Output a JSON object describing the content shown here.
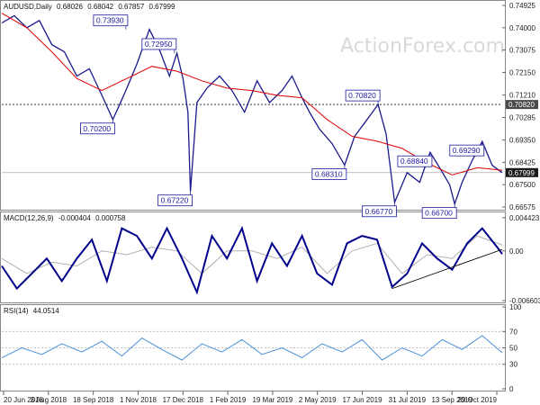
{
  "watermark": "ActionForex.com",
  "chart_data": [
    {
      "type": "line",
      "panel": "price",
      "header": {
        "symbol": "AUDUSD,Daily",
        "open": "0.68026",
        "high": "0.68042",
        "low": "0.67857",
        "close": "0.67999"
      },
      "y_ticks": [
        "0.74925",
        "0.74000",
        "0.73075",
        "0.72150",
        "0.71210",
        "0.70285",
        "0.69350",
        "0.68425",
        "0.67500",
        "0.66575"
      ],
      "ylim": [
        0.665,
        0.75
      ],
      "price_tag": {
        "value": 0.67999,
        "label": "0.67999"
      },
      "horizontal_level": {
        "value": 0.7082,
        "label": "0.70820"
      },
      "callouts": [
        {
          "label": "0.73930",
          "value": 0.7393,
          "t": 0.248
        },
        {
          "label": "0.70200",
          "value": 0.702,
          "t": 0.222
        },
        {
          "label": "0.72950",
          "value": 0.7295,
          "t": 0.345
        },
        {
          "label": "0.67220",
          "value": 0.6722,
          "t": 0.377
        },
        {
          "label": "0.70820",
          "value": 0.7082,
          "t": 0.752
        },
        {
          "label": "0.68310",
          "value": 0.6831,
          "t": 0.685
        },
        {
          "label": "0.68840",
          "value": 0.6884,
          "t": 0.856
        },
        {
          "label": "0.69290",
          "value": 0.6929,
          "t": 0.96
        },
        {
          "label": "0.66770",
          "value": 0.6677,
          "t": 0.785
        },
        {
          "label": "0.66700",
          "value": 0.667,
          "t": 0.905
        }
      ],
      "series": [
        {
          "name": "AUDUSD",
          "x": [
            0,
            0.025,
            0.05,
            0.075,
            0.1,
            0.125,
            0.15,
            0.175,
            0.2,
            0.222,
            0.235,
            0.25,
            0.27,
            0.295,
            0.315,
            0.335,
            0.35,
            0.362,
            0.372,
            0.377,
            0.39,
            0.41,
            0.435,
            0.46,
            0.485,
            0.51,
            0.535,
            0.56,
            0.58,
            0.6,
            0.615,
            0.635,
            0.66,
            0.685,
            0.705,
            0.73,
            0.752,
            0.768,
            0.785,
            0.81,
            0.835,
            0.856,
            0.875,
            0.895,
            0.905,
            0.92,
            0.94,
            0.96,
            0.98,
            1.0
          ],
          "values": [
            0.742,
            0.745,
            0.74,
            0.743,
            0.733,
            0.73,
            0.72,
            0.723,
            0.712,
            0.702,
            0.708,
            0.715,
            0.725,
            0.7393,
            0.731,
            0.72,
            0.7295,
            0.719,
            0.705,
            0.6722,
            0.709,
            0.715,
            0.72,
            0.714,
            0.705,
            0.718,
            0.709,
            0.714,
            0.72,
            0.711,
            0.705,
            0.698,
            0.692,
            0.6831,
            0.695,
            0.702,
            0.7082,
            0.696,
            0.6677,
            0.68,
            0.676,
            0.6884,
            0.682,
            0.675,
            0.667,
            0.676,
            0.685,
            0.6929,
            0.683,
            0.68
          ]
        },
        {
          "name": "MA",
          "x": [
            0,
            0.05,
            0.1,
            0.15,
            0.2,
            0.25,
            0.3,
            0.35,
            0.4,
            0.45,
            0.5,
            0.55,
            0.6,
            0.65,
            0.7,
            0.75,
            0.8,
            0.85,
            0.9,
            0.95,
            1.0
          ],
          "values": [
            0.746,
            0.74,
            0.73,
            0.719,
            0.714,
            0.719,
            0.724,
            0.722,
            0.718,
            0.715,
            0.714,
            0.712,
            0.711,
            0.702,
            0.695,
            0.693,
            0.69,
            0.684,
            0.679,
            0.682,
            0.681
          ]
        }
      ]
    },
    {
      "type": "line",
      "panel": "macd",
      "header": {
        "label": "MACD(12,26,9)",
        "value1": "-0.000404",
        "value2": "0.000758"
      },
      "y_ticks": [
        "0.004423",
        "0.00",
        "-0.006603"
      ],
      "ylim": [
        -0.0066,
        0.0044
      ],
      "series": [
        {
          "name": "MACD",
          "x": [
            0,
            0.03,
            0.06,
            0.09,
            0.12,
            0.15,
            0.18,
            0.21,
            0.24,
            0.27,
            0.3,
            0.33,
            0.36,
            0.39,
            0.42,
            0.45,
            0.48,
            0.51,
            0.54,
            0.57,
            0.6,
            0.63,
            0.66,
            0.69,
            0.72,
            0.75,
            0.78,
            0.81,
            0.84,
            0.87,
            0.9,
            0.93,
            0.96,
            0.99,
            1.0
          ],
          "values": [
            -0.002,
            -0.005,
            -0.003,
            -0.001,
            -0.004,
            -0.001,
            0.0015,
            -0.004,
            0.003,
            0.002,
            -0.001,
            0.003,
            -0.001,
            -0.0055,
            0.002,
            -0.001,
            0.003,
            -0.004,
            0.001,
            -0.002,
            0.002,
            -0.003,
            -0.0045,
            0.001,
            0.002,
            0.0015,
            -0.0048,
            -0.003,
            0.001,
            -0.001,
            -0.0025,
            0.001,
            0.003,
            0.0005,
            -0.0004
          ]
        },
        {
          "name": "Signal",
          "x": [
            0,
            0.05,
            0.1,
            0.15,
            0.2,
            0.25,
            0.3,
            0.35,
            0.4,
            0.45,
            0.5,
            0.55,
            0.6,
            0.65,
            0.7,
            0.75,
            0.8,
            0.85,
            0.9,
            0.95,
            1.0
          ],
          "values": [
            -0.001,
            -0.003,
            -0.0015,
            -0.002,
            0.0,
            -0.0005,
            0.0005,
            0.0,
            -0.003,
            0.0,
            0.0,
            -0.001,
            0.0005,
            -0.003,
            0.0,
            0.001,
            -0.003,
            -0.0005,
            -0.001,
            0.002,
            0.0008
          ]
        }
      ]
    },
    {
      "type": "line",
      "panel": "rsi",
      "header": {
        "label": "RSI(14)",
        "value": "44.0514"
      },
      "y_ticks": [
        "100",
        "70",
        "50",
        "30",
        "0"
      ],
      "ylim": [
        0,
        100
      ],
      "series": [
        {
          "name": "RSI",
          "x": [
            0,
            0.04,
            0.08,
            0.12,
            0.16,
            0.2,
            0.24,
            0.28,
            0.32,
            0.36,
            0.4,
            0.44,
            0.48,
            0.52,
            0.56,
            0.6,
            0.64,
            0.68,
            0.72,
            0.76,
            0.8,
            0.84,
            0.88,
            0.92,
            0.96,
            1.0
          ],
          "values": [
            38,
            50,
            42,
            55,
            45,
            58,
            40,
            62,
            48,
            35,
            55,
            45,
            60,
            42,
            50,
            38,
            55,
            45,
            60,
            35,
            50,
            40,
            60,
            48,
            65,
            44
          ]
        }
      ]
    }
  ],
  "x_ticks": [
    "20 Jun 2018",
    "3 Aug 2018",
    "18 Sep 2018",
    "1 Nov 2018",
    "17 Dec 2018",
    "1 Feb 2019",
    "19 Mar 2019",
    "2 May 2019",
    "17 Jun 2019",
    "31 Jul 2019",
    "13 Sep 2019",
    "29 Oct 2019"
  ],
  "colors": {
    "price": "#1a1a8c",
    "ma": "#e00000",
    "macd": "#00008b",
    "signal": "#b0b0b0",
    "rsi": "#4a90d9",
    "grid": "#b0b0b0",
    "trend": "#000000"
  }
}
